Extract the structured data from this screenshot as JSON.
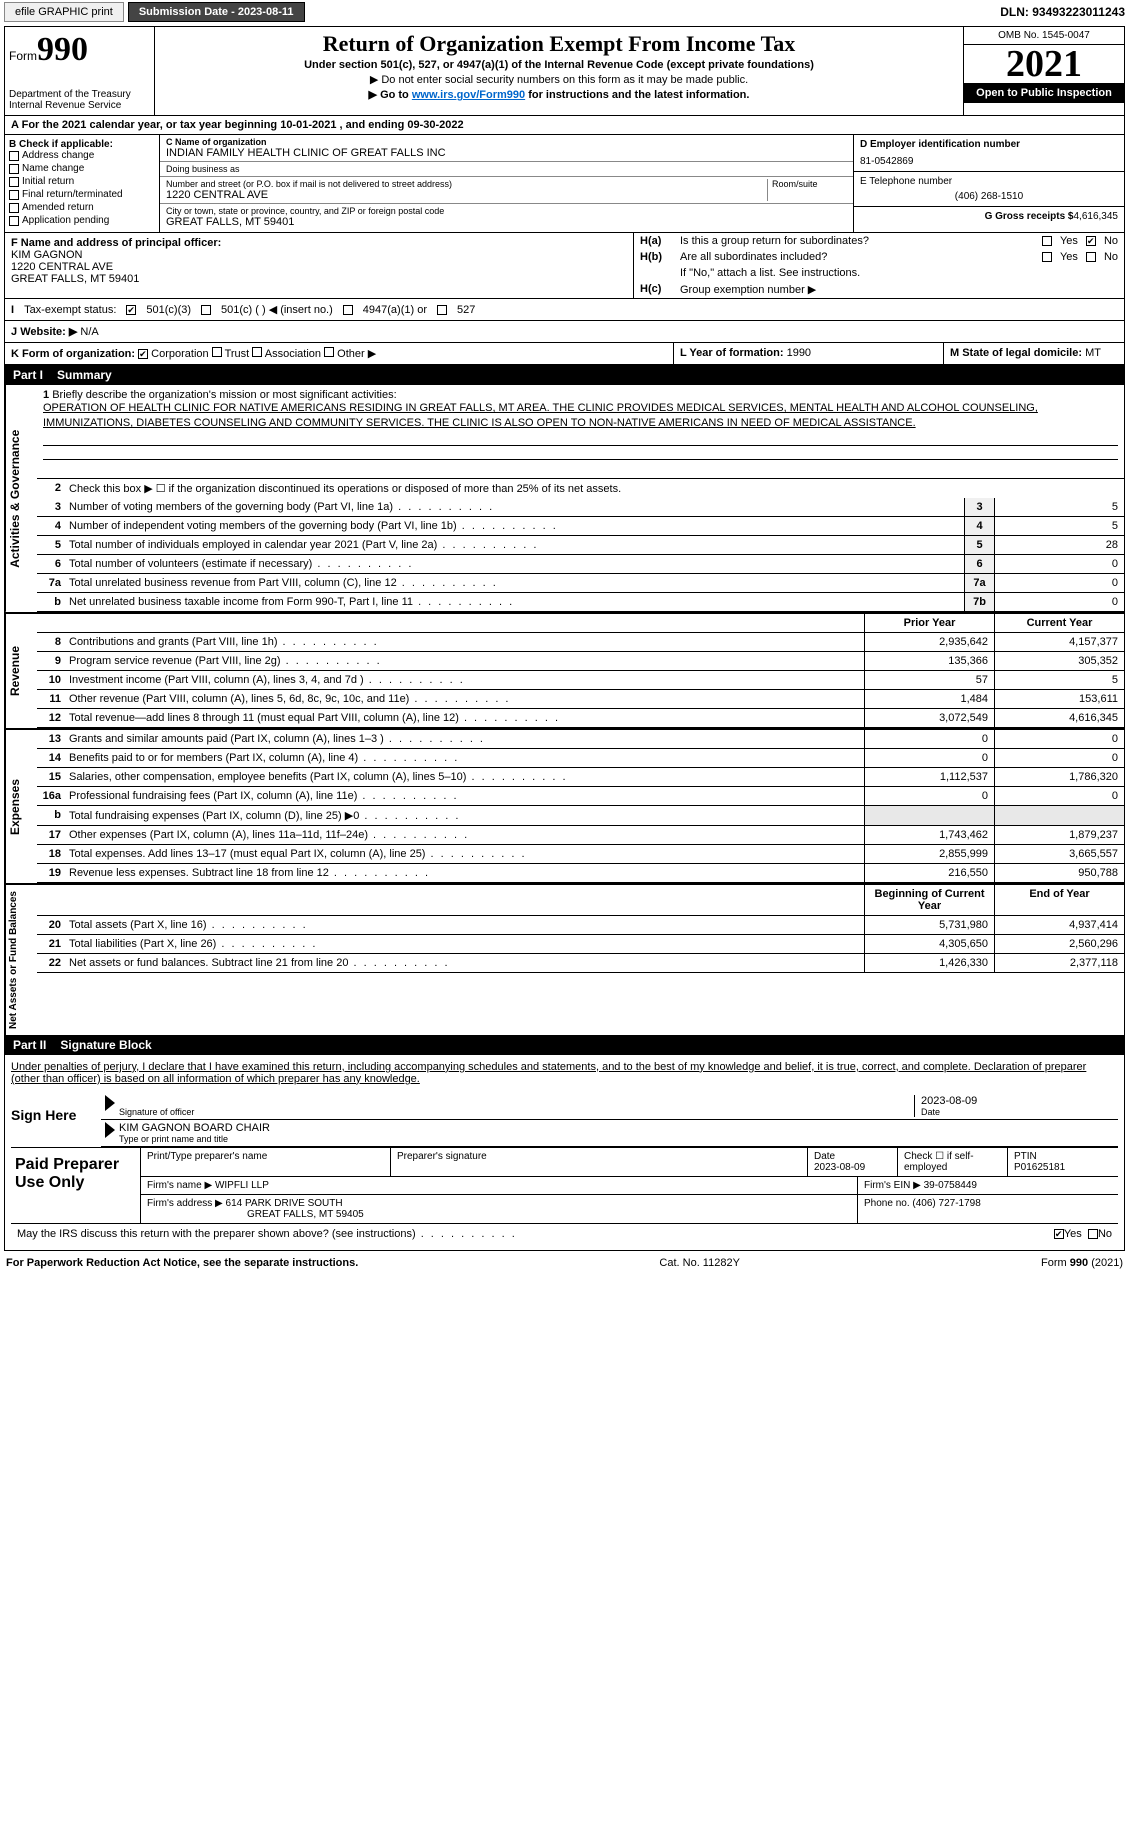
{
  "topbar": {
    "efile": "efile GRAPHIC print",
    "submission_label": "Submission Date - 2023-08-11",
    "dln": "DLN: 93493223011243"
  },
  "header": {
    "form_word": "Form",
    "form_no": "990",
    "dept": "Department of the Treasury",
    "irs": "Internal Revenue Service",
    "title": "Return of Organization Exempt From Income Tax",
    "sub1": "Under section 501(c), 527, or 4947(a)(1) of the Internal Revenue Code (except private foundations)",
    "sub2": "▶ Do not enter social security numbers on this form as it may be made public.",
    "sub3_pre": "▶ Go to ",
    "sub3_link": "www.irs.gov/Form990",
    "sub3_post": " for instructions and the latest information.",
    "omb": "OMB No. 1545-0047",
    "year": "2021",
    "open": "Open to Public Inspection"
  },
  "row_a": "For the 2021 calendar year, or tax year beginning 10-01-2021   , and ending 09-30-2022",
  "box_b": {
    "header": "B Check if applicable:",
    "items": [
      "Address change",
      "Name change",
      "Initial return",
      "Final return/terminated",
      "Amended return",
      "Application pending"
    ]
  },
  "box_c": {
    "name_label": "C Name of organization",
    "name": "INDIAN FAMILY HEALTH CLINIC OF GREAT FALLS INC",
    "dba_label": "Doing business as",
    "dba": "",
    "addr_label": "Number and street (or P.O. box if mail is not delivered to street address)",
    "room_label": "Room/suite",
    "addr": "1220 CENTRAL AVE",
    "city_label": "City or town, state or province, country, and ZIP or foreign postal code",
    "city": "GREAT FALLS, MT  59401"
  },
  "box_d": {
    "ein_label": "D Employer identification number",
    "ein": "81-0542869",
    "phone_label": "E Telephone number",
    "phone": "(406) 268-1510",
    "gross_label": "G Gross receipts $",
    "gross": "4,616,345"
  },
  "box_f": {
    "label": "F Name and address of principal officer:",
    "name": "KIM GAGNON",
    "addr1": "1220 CENTRAL AVE",
    "addr2": "GREAT FALLS, MT  59401"
  },
  "box_h": {
    "a_label": "H(a)",
    "a_text": "Is this a group return for subordinates?",
    "b_label": "H(b)",
    "b_text": "Are all subordinates included?",
    "note": "If \"No,\" attach a list. See instructions.",
    "c_label": "H(c)",
    "c_text": "Group exemption number ▶",
    "yes": "Yes",
    "no": "No"
  },
  "row_i": {
    "label": "Tax-exempt status:",
    "opt1": "501(c)(3)",
    "opt2": "501(c) (   ) ◀ (insert no.)",
    "opt3": "4947(a)(1) or",
    "opt4": "527"
  },
  "row_j": {
    "label": "Website: ▶",
    "val": "N/A"
  },
  "row_k": {
    "label": "K Form of organization:",
    "opts": [
      "Corporation",
      "Trust",
      "Association",
      "Other ▶"
    ],
    "l_label": "L Year of formation:",
    "l_val": "1990",
    "m_label": "M State of legal domicile:",
    "m_val": "MT"
  },
  "part1": {
    "label": "Part I",
    "title": "Summary"
  },
  "mission": {
    "num": "1",
    "label": "Briefly describe the organization's mission or most significant activities:",
    "text": "OPERATION OF HEALTH CLINIC FOR NATIVE AMERICANS RESIDING IN GREAT FALLS, MT AREA. THE CLINIC PROVIDES MEDICAL SERVICES, MENTAL HEALTH AND ALCOHOL COUNSELING, IMMUNIZATIONS, DIABETES COUNSELING AND COMMUNITY SERVICES. THE CLINIC IS ALSO OPEN TO NON-NATIVE AMERICANS IN NEED OF MEDICAL ASSISTANCE."
  },
  "gov_lines": [
    {
      "n": "2",
      "t": "Check this box ▶ ☐ if the organization discontinued its operations or disposed of more than 25% of its net assets."
    },
    {
      "n": "3",
      "t": "Number of voting members of the governing body (Part VI, line 1a)",
      "box": "3",
      "v": "5"
    },
    {
      "n": "4",
      "t": "Number of independent voting members of the governing body (Part VI, line 1b)",
      "box": "4",
      "v": "5"
    },
    {
      "n": "5",
      "t": "Total number of individuals employed in calendar year 2021 (Part V, line 2a)",
      "box": "5",
      "v": "28"
    },
    {
      "n": "6",
      "t": "Total number of volunteers (estimate if necessary)",
      "box": "6",
      "v": "0"
    },
    {
      "n": "7a",
      "t": "Total unrelated business revenue from Part VIII, column (C), line 12",
      "box": "7a",
      "v": "0"
    },
    {
      "n": "b",
      "t": "Net unrelated business taxable income from Form 990-T, Part I, line 11",
      "box": "7b",
      "v": "0"
    }
  ],
  "rev_hdr": {
    "prior": "Prior Year",
    "current": "Current Year"
  },
  "rev_lines": [
    {
      "n": "8",
      "t": "Contributions and grants (Part VIII, line 1h)",
      "p": "2,935,642",
      "c": "4,157,377"
    },
    {
      "n": "9",
      "t": "Program service revenue (Part VIII, line 2g)",
      "p": "135,366",
      "c": "305,352"
    },
    {
      "n": "10",
      "t": "Investment income (Part VIII, column (A), lines 3, 4, and 7d )",
      "p": "57",
      "c": "5"
    },
    {
      "n": "11",
      "t": "Other revenue (Part VIII, column (A), lines 5, 6d, 8c, 9c, 10c, and 11e)",
      "p": "1,484",
      "c": "153,611"
    },
    {
      "n": "12",
      "t": "Total revenue—add lines 8 through 11 (must equal Part VIII, column (A), line 12)",
      "p": "3,072,549",
      "c": "4,616,345"
    }
  ],
  "exp_lines": [
    {
      "n": "13",
      "t": "Grants and similar amounts paid (Part IX, column (A), lines 1–3 )",
      "p": "0",
      "c": "0"
    },
    {
      "n": "14",
      "t": "Benefits paid to or for members (Part IX, column (A), line 4)",
      "p": "0",
      "c": "0"
    },
    {
      "n": "15",
      "t": "Salaries, other compensation, employee benefits (Part IX, column (A), lines 5–10)",
      "p": "1,112,537",
      "c": "1,786,320"
    },
    {
      "n": "16a",
      "t": "Professional fundraising fees (Part IX, column (A), line 11e)",
      "p": "0",
      "c": "0"
    },
    {
      "n": "b",
      "t": "Total fundraising expenses (Part IX, column (D), line 25) ▶0",
      "p": "",
      "c": "",
      "shade": true
    },
    {
      "n": "17",
      "t": "Other expenses (Part IX, column (A), lines 11a–11d, 11f–24e)",
      "p": "1,743,462",
      "c": "1,879,237"
    },
    {
      "n": "18",
      "t": "Total expenses. Add lines 13–17 (must equal Part IX, column (A), line 25)",
      "p": "2,855,999",
      "c": "3,665,557"
    },
    {
      "n": "19",
      "t": "Revenue less expenses. Subtract line 18 from line 12",
      "p": "216,550",
      "c": "950,788"
    }
  ],
  "net_hdr": {
    "begin": "Beginning of Current Year",
    "end": "End of Year"
  },
  "net_lines": [
    {
      "n": "20",
      "t": "Total assets (Part X, line 16)",
      "p": "5,731,980",
      "c": "4,937,414"
    },
    {
      "n": "21",
      "t": "Total liabilities (Part X, line 26)",
      "p": "4,305,650",
      "c": "2,560,296"
    },
    {
      "n": "22",
      "t": "Net assets or fund balances. Subtract line 21 from line 20",
      "p": "1,426,330",
      "c": "2,377,118"
    }
  ],
  "part2": {
    "label": "Part II",
    "title": "Signature Block"
  },
  "sig": {
    "decl": "Under penalties of perjury, I declare that I have examined this return, including accompanying schedules and statements, and to the best of my knowledge and belief, it is true, correct, and complete. Declaration of preparer (other than officer) is based on all information of which preparer has any knowledge.",
    "sign_here": "Sign Here",
    "sig_officer": "Signature of officer",
    "date_val": "2023-08-09",
    "date_label": "Date",
    "name": "KIM GAGNON  BOARD CHAIR",
    "name_label": "Type or print name and title"
  },
  "prep": {
    "label": "Paid Preparer Use Only",
    "h1": "Print/Type preparer's name",
    "h2": "Preparer's signature",
    "h3": "Date",
    "h3v": "2023-08-09",
    "h4": "Check ☐ if self-employed",
    "h5": "PTIN",
    "h5v": "P01625181",
    "firm_label": "Firm's name    ▶",
    "firm": "WIPFLI LLP",
    "ein_label": "Firm's EIN ▶",
    "ein": "39-0758449",
    "addr_label": "Firm's address ▶",
    "addr1": "614 PARK DRIVE SOUTH",
    "addr2": "GREAT FALLS, MT  59405",
    "phone_label": "Phone no.",
    "phone": "(406) 727-1798"
  },
  "may_irs": {
    "text": "May the IRS discuss this return with the preparer shown above? (see instructions)",
    "yes": "Yes",
    "no": "No"
  },
  "footer": {
    "left": "For Paperwork Reduction Act Notice, see the separate instructions.",
    "mid": "Cat. No. 11282Y",
    "right_form": "Form",
    "right_no": "990",
    "right_yr": "(2021)"
  },
  "vtabs": {
    "gov": "Activities & Governance",
    "rev": "Revenue",
    "exp": "Expenses",
    "net": "Net Assets or Fund Balances"
  }
}
